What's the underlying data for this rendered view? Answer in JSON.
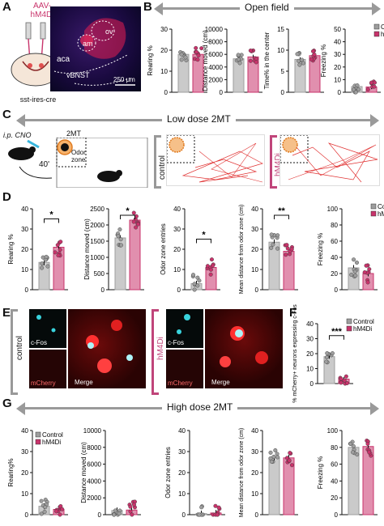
{
  "panel_letters": {
    "a": "A",
    "b": "B",
    "c": "C",
    "d": "D",
    "e": "E",
    "f": "F",
    "g": "G"
  },
  "panel_a": {
    "virus_label_line1": "AAV-",
    "virus_label_line2": "hM4Di",
    "mouse_line": "sst-ires-cre",
    "region_am": "am",
    "region_ov": "ov",
    "region_aca": "aca",
    "region_vbnst": "vBNST",
    "scale_bar": "250 μm"
  },
  "banners": {
    "open_field": "Open field",
    "low_dose": "Low dose 2MT",
    "high_dose": "High dose 2MT"
  },
  "panel_c": {
    "injection_label": "i.p. CNO",
    "delay_label": "40'",
    "odor_label": "2MT",
    "zone_label_line1": "Odor",
    "zone_label_line2": "zone",
    "control_label": "control",
    "hm4di_label": "hM4Di"
  },
  "panel_e": {
    "control_label": "control",
    "hm4di_label": "hM4Di",
    "cfos_label": "c-Fos",
    "mcherry_label": "mCherry",
    "merge_label": "Merge"
  },
  "colors": {
    "control": "#9e9e9e",
    "hm4di": "#c8336b",
    "banner": "#9a9a9a",
    "mcherry": "#e02020",
    "cfos": "#39d3dd"
  },
  "legend": {
    "control": "Control",
    "hm4di": "hM4Di"
  },
  "chart_data": [
    {
      "id": "B1",
      "type": "bar",
      "ylabel": "Rearing %",
      "yticks": [
        "0",
        "10",
        "20",
        "30"
      ],
      "ylim": [
        0,
        30
      ],
      "series": [
        {
          "name": "Control",
          "values": [
            18
          ]
        },
        {
          "name": "hM4Di",
          "values": [
            18
          ]
        }
      ],
      "significance": ""
    },
    {
      "id": "B2",
      "type": "bar",
      "ylabel": "Distance moved (cm)",
      "yticks": [
        "0",
        "2000",
        "4000",
        "6000",
        "8000",
        "10000"
      ],
      "ylim": [
        0,
        10000
      ],
      "series": [
        {
          "name": "Control",
          "values": [
            5300
          ]
        },
        {
          "name": "hM4Di",
          "values": [
            5600
          ]
        }
      ],
      "significance": ""
    },
    {
      "id": "B3",
      "type": "bar",
      "ylabel": "Time% in the center",
      "yticks": [
        "0",
        "5",
        "10",
        "15"
      ],
      "ylim": [
        0,
        15
      ],
      "series": [
        {
          "name": "Control",
          "values": [
            7.8
          ]
        },
        {
          "name": "hM4Di",
          "values": [
            8.7
          ]
        }
      ],
      "significance": ""
    },
    {
      "id": "B4",
      "type": "bar",
      "ylabel": "Freezing %",
      "yticks": [
        "0",
        "10",
        "20",
        "30",
        "40",
        "50"
      ],
      "ylim": [
        0,
        50
      ],
      "series": [
        {
          "name": "Control",
          "values": [
            4.5
          ]
        },
        {
          "name": "hM4Di",
          "values": [
            4.2
          ]
        }
      ],
      "significance": "",
      "legend": true
    },
    {
      "id": "D1",
      "type": "bar",
      "ylabel": "Rearing %",
      "yticks": [
        "0",
        "10",
        "20",
        "30",
        "40"
      ],
      "ylim": [
        0,
        40
      ],
      "series": [
        {
          "name": "Control",
          "values": [
            13.5
          ]
        },
        {
          "name": "hM4Di",
          "values": [
            21
          ]
        }
      ],
      "significance": "*"
    },
    {
      "id": "D2",
      "type": "bar",
      "ylabel": "Distance moved (cm)",
      "yticks": [
        "0",
        "500",
        "1000",
        "1500",
        "2000",
        "2500"
      ],
      "ylim": [
        0,
        2500
      ],
      "series": [
        {
          "name": "Control",
          "values": [
            1600
          ]
        },
        {
          "name": "hM4Di",
          "values": [
            2150
          ]
        }
      ],
      "significance": "*"
    },
    {
      "id": "D3",
      "type": "bar",
      "ylabel": "Odor zone entries",
      "yticks": [
        "0",
        "10",
        "20",
        "30",
        "40"
      ],
      "ylim": [
        0,
        40
      ],
      "series": [
        {
          "name": "Control",
          "values": [
            3
          ]
        },
        {
          "name": "hM4Di",
          "values": [
            11
          ]
        }
      ],
      "significance": "*"
    },
    {
      "id": "D4",
      "type": "bar",
      "ylabel": "Mean distance from odor zone (cm)",
      "yticks": [
        "0",
        "10",
        "20",
        "30",
        "40"
      ],
      "ylim": [
        0,
        40
      ],
      "series": [
        {
          "name": "Control",
          "values": [
            23.5
          ]
        },
        {
          "name": "hM4Di",
          "values": [
            19
          ]
        }
      ],
      "significance": "**"
    },
    {
      "id": "D5",
      "type": "bar",
      "ylabel": "Freezing %",
      "yticks": [
        "0",
        "20",
        "40",
        "60",
        "80",
        "100"
      ],
      "ylim": [
        0,
        100
      ],
      "series": [
        {
          "name": "Control",
          "values": [
            27
          ]
        },
        {
          "name": "hM4Di",
          "values": [
            20
          ]
        }
      ],
      "significance": "",
      "legend": true
    },
    {
      "id": "F",
      "type": "bar",
      "ylabel": "% mCherry+ neurons expressing c-Fos",
      "yticks": [
        "0",
        "10",
        "20",
        "30",
        "40"
      ],
      "ylim": [
        0,
        40
      ],
      "series": [
        {
          "name": "Control",
          "values": [
            18
          ]
        },
        {
          "name": "hM4Di",
          "values": [
            3
          ]
        }
      ],
      "significance": "***",
      "legend": true
    },
    {
      "id": "G1",
      "type": "bar",
      "ylabel": "Rearing%",
      "yticks": [
        "0",
        "10",
        "20",
        "30",
        "40"
      ],
      "ylim": [
        0,
        40
      ],
      "series": [
        {
          "name": "Control",
          "values": [
            4
          ]
        },
        {
          "name": "hM4Di",
          "values": [
            2.5
          ]
        }
      ],
      "significance": "",
      "legend": true
    },
    {
      "id": "G2",
      "type": "bar",
      "ylabel": "Distance moved (cm)",
      "yticks": [
        "0",
        "2000",
        "4000",
        "6000",
        "8000",
        "10000"
      ],
      "ylim": [
        0,
        10000
      ],
      "series": [
        {
          "name": "Control",
          "values": [
            500
          ]
        },
        {
          "name": "hM4Di",
          "values": [
            550
          ]
        }
      ],
      "significance": ""
    },
    {
      "id": "G3",
      "type": "bar",
      "ylabel": "Odor zone entries",
      "yticks": [
        "0",
        "10",
        "20",
        "30",
        "40"
      ],
      "ylim": [
        0,
        40
      ],
      "series": [
        {
          "name": "Control",
          "values": [
            0.5
          ]
        },
        {
          "name": "hM4Di",
          "values": [
            0.8
          ]
        }
      ],
      "significance": ""
    },
    {
      "id": "G4",
      "type": "bar",
      "ylabel": "Mean distance from odor zone (cm)",
      "yticks": [
        "0",
        "10",
        "20",
        "30",
        "40"
      ],
      "ylim": [
        0,
        40
      ],
      "series": [
        {
          "name": "Control",
          "values": [
            27
          ]
        },
        {
          "name": "hM4Di",
          "values": [
            27
          ]
        }
      ],
      "significance": ""
    },
    {
      "id": "G5",
      "type": "bar",
      "ylabel": "Freezing %",
      "yticks": [
        "0",
        "20",
        "40",
        "60",
        "80",
        "100"
      ],
      "ylim": [
        0,
        100
      ],
      "series": [
        {
          "name": "Control",
          "values": [
            80
          ]
        },
        {
          "name": "hM4Di",
          "values": [
            81
          ]
        }
      ],
      "significance": ""
    }
  ]
}
